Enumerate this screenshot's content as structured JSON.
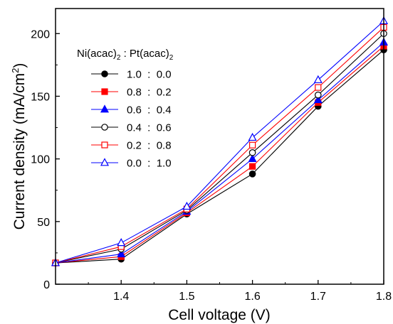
{
  "chart_data": {
    "type": "line",
    "xlabel": "Cell voltage (V)",
    "ylabel": {
      "main": "Current density (mA/cm",
      "sup": "2",
      "tail": ")"
    },
    "xlim": [
      1.3,
      1.8
    ],
    "ylim": [
      0,
      220
    ],
    "xticks": [
      1.4,
      1.5,
      1.6,
      1.7,
      1.8
    ],
    "xtick_labels": [
      "1.4",
      "1.5",
      "1.6",
      "1.7",
      "1.8"
    ],
    "yticks": [
      0,
      50,
      100,
      150,
      200
    ],
    "ytick_labels": [
      "0",
      "50",
      "100",
      "150",
      "200"
    ],
    "grid": false,
    "legend": {
      "placement": "top-left",
      "title": {
        "a": "Ni(acac)",
        "sub1": "2",
        "b": " : Pt(acac)",
        "sub2": "2"
      }
    },
    "x": [
      1.3,
      1.4,
      1.5,
      1.6,
      1.7,
      1.8
    ],
    "series": [
      {
        "name": "1.0  :  0.0",
        "color": "#000000",
        "marker": "circle",
        "filled": true,
        "values": [
          17,
          20,
          56,
          88,
          142,
          187
        ]
      },
      {
        "name": "0.8  :  0.2",
        "color": "#ff0000",
        "marker": "square",
        "filled": true,
        "values": [
          17,
          22,
          57,
          94,
          145,
          190
        ]
      },
      {
        "name": "0.6  :  0.4",
        "color": "#0000ff",
        "marker": "triangle",
        "filled": true,
        "values": [
          17,
          24,
          58,
          100,
          147,
          193
        ]
      },
      {
        "name": "0.4  :  0.6",
        "color": "#000000",
        "marker": "circle",
        "filled": false,
        "values": [
          17,
          28,
          59,
          105,
          151,
          200
        ]
      },
      {
        "name": "0.2  :  0.8",
        "color": "#ff0000",
        "marker": "square",
        "filled": false,
        "values": [
          17,
          30,
          60,
          111,
          157,
          205
        ]
      },
      {
        "name": "0.0  :  1.0",
        "color": "#0000ff",
        "marker": "triangle",
        "filled": false,
        "values": [
          17,
          33,
          62,
          117,
          163,
          210
        ]
      }
    ]
  }
}
